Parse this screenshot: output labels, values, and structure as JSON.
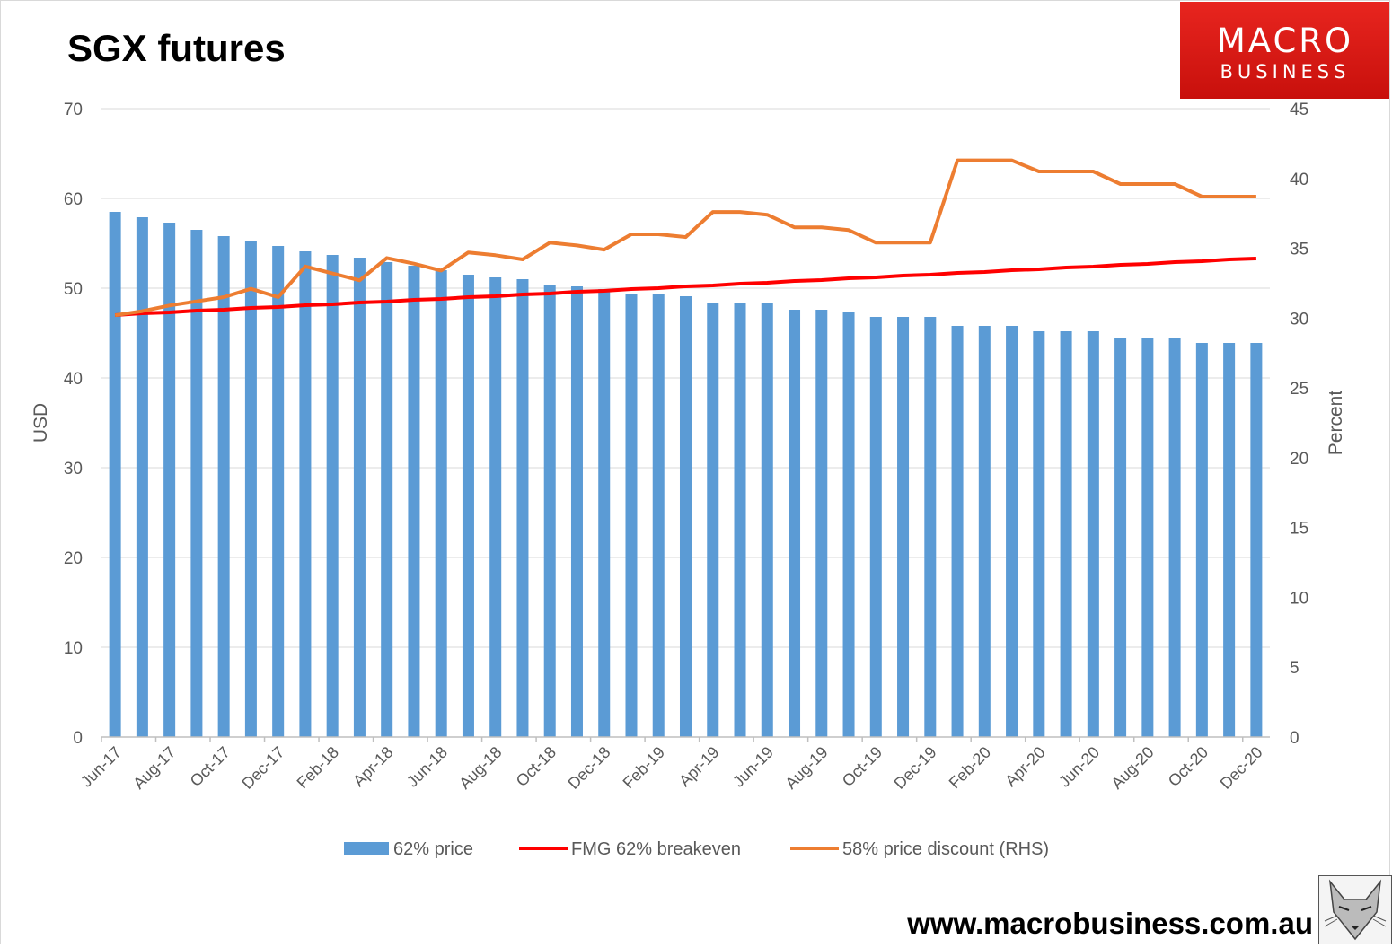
{
  "title": "SGX futures",
  "logo": {
    "line1": "MACRO",
    "line2": "BUSINESS"
  },
  "url": "www.macrobusiness.com.au",
  "chart_data": {
    "type": "bar",
    "categories": [
      "Jun-17",
      "Jul-17",
      "Aug-17",
      "Sep-17",
      "Oct-17",
      "Nov-17",
      "Dec-17",
      "Jan-18",
      "Feb-18",
      "Mar-18",
      "Apr-18",
      "May-18",
      "Jun-18",
      "Jul-18",
      "Aug-18",
      "Sep-18",
      "Oct-18",
      "Nov-18",
      "Dec-18",
      "Jan-19",
      "Feb-19",
      "Mar-19",
      "Apr-19",
      "May-19",
      "Jun-19",
      "Jul-19",
      "Aug-19",
      "Sep-19",
      "Oct-19",
      "Nov-19",
      "Dec-19",
      "Jan-20",
      "Feb-20",
      "Mar-20",
      "Apr-20",
      "May-20",
      "Jun-20",
      "Jul-20",
      "Aug-20",
      "Sep-20",
      "Oct-20",
      "Nov-20",
      "Dec-20"
    ],
    "tick_labels": [
      "Jun-17",
      "Aug-17",
      "Oct-17",
      "Dec-17",
      "Feb-18",
      "Apr-18",
      "Jun-18",
      "Aug-18",
      "Oct-18",
      "Dec-18",
      "Feb-19",
      "Apr-19",
      "Jun-19",
      "Aug-19",
      "Oct-19",
      "Dec-19",
      "Feb-20",
      "Apr-20",
      "Jun-20",
      "Aug-20",
      "Oct-20",
      "Dec-20"
    ],
    "series": [
      {
        "name": "62% price",
        "type": "bar",
        "axis": "left",
        "color": "#5b9bd5",
        "values": [
          58.5,
          57.9,
          57.3,
          56.5,
          55.8,
          55.2,
          54.7,
          54.1,
          53.7,
          53.4,
          52.9,
          52.5,
          52.0,
          51.5,
          51.2,
          51.0,
          50.3,
          50.2,
          49.9,
          49.3,
          49.3,
          49.1,
          48.4,
          48.4,
          48.3,
          47.6,
          47.6,
          47.4,
          46.8,
          46.8,
          46.8,
          45.8,
          45.8,
          45.8,
          45.2,
          45.2,
          45.2,
          44.5,
          44.5,
          44.5,
          43.9,
          43.9,
          43.9
        ]
      },
      {
        "name": "FMG 62% breakeven",
        "type": "line",
        "axis": "left",
        "color": "#ff0000",
        "values": [
          47.0,
          47.2,
          47.3,
          47.5,
          47.6,
          47.8,
          47.9,
          48.1,
          48.2,
          48.4,
          48.5,
          48.7,
          48.8,
          49.0,
          49.1,
          49.3,
          49.4,
          49.6,
          49.7,
          49.9,
          50.0,
          50.2,
          50.3,
          50.5,
          50.6,
          50.8,
          50.9,
          51.1,
          51.2,
          51.4,
          51.5,
          51.7,
          51.8,
          52.0,
          52.1,
          52.3,
          52.4,
          52.6,
          52.7,
          52.9,
          53.0,
          53.2,
          53.3
        ]
      },
      {
        "name": "58% price discount (RHS)",
        "type": "line",
        "axis": "right",
        "color": "#ed7d31",
        "values": [
          30.2,
          30.5,
          30.9,
          31.2,
          31.5,
          32.1,
          31.5,
          33.7,
          33.2,
          32.7,
          34.3,
          33.9,
          33.4,
          34.7,
          34.5,
          34.2,
          35.4,
          35.2,
          34.9,
          36.0,
          36.0,
          35.8,
          37.6,
          37.6,
          37.4,
          36.5,
          36.5,
          36.3,
          35.4,
          35.4,
          35.4,
          41.3,
          41.3,
          41.3,
          40.5,
          40.5,
          40.5,
          39.6,
          39.6,
          39.6,
          38.7,
          38.7,
          38.7
        ]
      }
    ],
    "ylabel": "USD",
    "y2label": "Percent",
    "ylim": [
      0,
      70
    ],
    "y2lim": [
      0,
      45
    ],
    "yticks": [
      0,
      10,
      20,
      30,
      40,
      50,
      60,
      70
    ],
    "y2ticks": [
      0,
      5,
      10,
      15,
      20,
      25,
      30,
      35,
      40,
      45
    ],
    "grid": true,
    "legend_position": "bottom"
  }
}
